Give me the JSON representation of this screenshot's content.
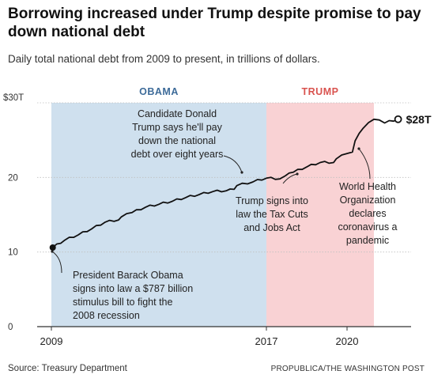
{
  "title": "Borrowing increased under Trump despite promise to pay down national debt",
  "subtitle": "Daily total national debt from 2009 to present, in trillions of dollars.",
  "source": "Source: Treasury Department",
  "credit": "PROPUBLICA/THE WASHINGTON POST",
  "colors": {
    "obama_band": "#cfe0ee",
    "trump_band": "#f9d2d4",
    "obama_label": "#3d6b99",
    "trump_label": "#d9534f",
    "line": "#111111"
  },
  "chart_data": {
    "type": "line",
    "title": "Borrowing increased under Trump despite promise to pay down national debt",
    "subtitle": "Daily total national debt from 2009 to present, in trillions of dollars.",
    "xlim": [
      2009,
      2022.4
    ],
    "ylim": [
      0,
      30
    ],
    "x_ticks": [
      {
        "value": 2009,
        "label": "2009"
      },
      {
        "value": 2017,
        "label": "2017"
      },
      {
        "value": 2020,
        "label": "2020"
      }
    ],
    "y_ticks": [
      {
        "value": 0,
        "label": "0"
      },
      {
        "value": 10,
        "label": "10"
      },
      {
        "value": 20,
        "label": "20"
      },
      {
        "value": 30,
        "label": "$30T"
      }
    ],
    "grid": true,
    "bands": [
      {
        "label": "OBAMA",
        "from": 2009,
        "to": 2017
      },
      {
        "label": "TRUMP",
        "from": 2017,
        "to": 2021
      }
    ],
    "series": [
      {
        "x": [
          2009.05,
          2009.5,
          2010,
          2010.5,
          2011,
          2011.5,
          2011.6,
          2012,
          2012.5,
          2013,
          2013.5,
          2014,
          2014.5,
          2015,
          2015.5,
          2015.8,
          2015.9,
          2016.5,
          2017,
          2017.5,
          2017.7,
          2018,
          2018.5,
          2019,
          2019.5,
          2019.6,
          2020,
          2020.2,
          2020.3,
          2020.6,
          2021,
          2021.4,
          2021.9
        ],
        "y": [
          10.6,
          11.6,
          12.3,
          13.1,
          14.0,
          14.3,
          14.7,
          15.3,
          16.0,
          16.4,
          16.8,
          17.3,
          17.7,
          18.1,
          18.2,
          18.4,
          18.9,
          19.4,
          19.9,
          19.8,
          20.2,
          20.7,
          21.4,
          22.0,
          22.0,
          22.5,
          23.2,
          23.4,
          24.9,
          26.6,
          27.8,
          27.3,
          27.8
        ]
      }
    ],
    "end_label": "$28T",
    "annotations": [
      "Candidate Donald",
      "Trump says he'll pay",
      "down the national",
      "debt over eight years",
      "Trump signs into",
      "law the Tax Cuts",
      "and Jobs Act",
      "World Health",
      "Organization",
      "declares",
      "coronavirus a",
      "pandemic",
      "President Barack Obama",
      "signs into law a $787 billion",
      "stimulus bill to fight the",
      "2008 recession"
    ]
  }
}
